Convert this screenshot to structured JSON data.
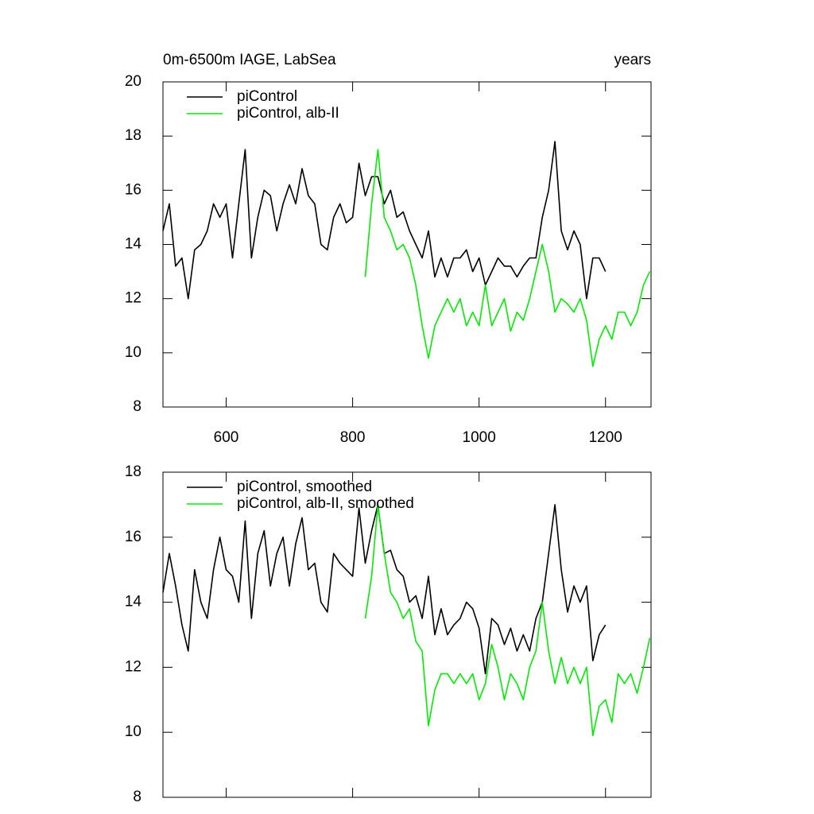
{
  "chart_data": [
    {
      "type": "line",
      "title": "0m-6500m IAGE, LabSea",
      "right_title": "years",
      "x": [
        500,
        510,
        520,
        530,
        540,
        550,
        560,
        570,
        580,
        590,
        600,
        610,
        620,
        630,
        640,
        650,
        660,
        670,
        680,
        690,
        700,
        710,
        720,
        730,
        740,
        750,
        760,
        770,
        780,
        790,
        800,
        810,
        820,
        830,
        840,
        850,
        860,
        870,
        880,
        890,
        900,
        910,
        920,
        930,
        940,
        950,
        960,
        970,
        980,
        990,
        1000,
        1010,
        1020,
        1030,
        1040,
        1050,
        1060,
        1070,
        1080,
        1090,
        1100,
        1110,
        1120,
        1130,
        1140,
        1150,
        1160,
        1170,
        1180,
        1190,
        1200,
        1210,
        1220,
        1230,
        1240,
        1250,
        1260,
        1270
      ],
      "series": [
        {
          "name": "piControl",
          "color": "#000000",
          "values": [
            14.5,
            15.5,
            13.2,
            13.5,
            12.0,
            13.8,
            14.0,
            14.5,
            15.5,
            15.0,
            15.5,
            13.5,
            15.5,
            17.5,
            13.5,
            15.0,
            16.0,
            15.8,
            14.5,
            15.5,
            16.2,
            15.5,
            16.8,
            15.8,
            15.5,
            14.0,
            13.8,
            15.0,
            15.5,
            14.8,
            15.0,
            17.0,
            15.8,
            16.5,
            16.5,
            15.5,
            16.0,
            15.0,
            15.2,
            14.5,
            14.0,
            13.5,
            14.5,
            12.8,
            13.5,
            12.8,
            13.5,
            13.5,
            13.8,
            13.0,
            13.5,
            12.5,
            13.0,
            13.5,
            13.2,
            13.2,
            12.8,
            13.2,
            13.5,
            13.5,
            15.0,
            16.0,
            17.8,
            14.5,
            13.8,
            14.5,
            14.0,
            12.0,
            13.5,
            13.5,
            13.0,
            null,
            null,
            null,
            null,
            null,
            null,
            null
          ]
        },
        {
          "name": "piControl, alb-II",
          "color": "#00ee00",
          "values": [
            null,
            null,
            null,
            null,
            null,
            null,
            null,
            null,
            null,
            null,
            null,
            null,
            null,
            null,
            null,
            null,
            null,
            null,
            null,
            null,
            null,
            null,
            null,
            null,
            null,
            null,
            null,
            null,
            null,
            null,
            null,
            null,
            12.8,
            15.5,
            17.5,
            15.0,
            14.5,
            13.8,
            14.0,
            13.5,
            12.5,
            11.0,
            9.8,
            11.0,
            11.5,
            12.0,
            11.5,
            12.0,
            11.0,
            11.5,
            11.0,
            12.5,
            11.0,
            11.5,
            12.0,
            10.8,
            11.5,
            11.2,
            12.0,
            13.0,
            14.0,
            13.0,
            11.5,
            12.0,
            11.8,
            11.5,
            12.0,
            11.2,
            9.5,
            10.5,
            11.0,
            10.5,
            11.5,
            11.5,
            11.0,
            11.5,
            12.5,
            13.0
          ]
        }
      ],
      "xlim": [
        500,
        1272
      ],
      "xticks": [
        600,
        800,
        1000,
        1200
      ],
      "ylim": [
        8,
        20
      ],
      "yticks": [
        8,
        10,
        12,
        14,
        16,
        18,
        20
      ]
    },
    {
      "type": "line",
      "x": [
        500,
        510,
        520,
        530,
        540,
        550,
        560,
        570,
        580,
        590,
        600,
        610,
        620,
        630,
        640,
        650,
        660,
        670,
        680,
        690,
        700,
        710,
        720,
        730,
        740,
        750,
        760,
        770,
        780,
        790,
        800,
        810,
        820,
        830,
        840,
        850,
        860,
        870,
        880,
        890,
        900,
        910,
        920,
        930,
        940,
        950,
        960,
        970,
        980,
        990,
        1000,
        1010,
        1020,
        1030,
        1040,
        1050,
        1060,
        1070,
        1080,
        1090,
        1100,
        1110,
        1120,
        1130,
        1140,
        1150,
        1160,
        1170,
        1180,
        1190,
        1200,
        1210,
        1220,
        1230,
        1240,
        1250,
        1260,
        1270
      ],
      "series": [
        {
          "name": "piControl, smoothed",
          "color": "#000000",
          "values": [
            14.3,
            15.5,
            14.5,
            13.3,
            12.5,
            15.0,
            14.0,
            13.5,
            15.0,
            16.0,
            15.0,
            14.8,
            14.0,
            16.5,
            13.5,
            15.5,
            16.2,
            14.5,
            15.5,
            16.0,
            14.5,
            15.8,
            16.6,
            15.0,
            15.2,
            14.0,
            13.7,
            15.5,
            15.2,
            15.0,
            14.8,
            16.9,
            15.2,
            16.2,
            17.0,
            15.5,
            15.6,
            15.0,
            14.8,
            14.0,
            14.2,
            13.5,
            14.8,
            13.0,
            13.8,
            13.0,
            13.3,
            13.5,
            14.0,
            13.8,
            13.2,
            11.8,
            13.5,
            13.3,
            12.7,
            13.2,
            12.5,
            13.0,
            12.5,
            13.5,
            14.0,
            15.5,
            17.0,
            15.0,
            13.7,
            14.5,
            14.0,
            14.5,
            12.2,
            13.0,
            13.3,
            null,
            null,
            null,
            null,
            null,
            null,
            null
          ]
        },
        {
          "name": "piControl, alb-II, smoothed",
          "color": "#00ee00",
          "values": [
            null,
            null,
            null,
            null,
            null,
            null,
            null,
            null,
            null,
            null,
            null,
            null,
            null,
            null,
            null,
            null,
            null,
            null,
            null,
            null,
            null,
            null,
            null,
            null,
            null,
            null,
            null,
            null,
            null,
            null,
            null,
            null,
            13.5,
            14.8,
            17.0,
            15.5,
            14.3,
            14.0,
            13.5,
            13.8,
            12.8,
            12.5,
            10.2,
            11.3,
            11.8,
            11.8,
            11.5,
            11.8,
            11.5,
            11.8,
            11.0,
            11.5,
            12.7,
            12.0,
            11.0,
            11.8,
            11.5,
            11.0,
            12.0,
            12.5,
            14.0,
            12.5,
            11.5,
            12.3,
            11.5,
            12.0,
            11.5,
            12.0,
            9.9,
            10.8,
            11.0,
            10.3,
            11.8,
            11.5,
            11.8,
            11.2,
            12.0,
            12.9
          ]
        }
      ],
      "xlim": [
        500,
        1272
      ],
      "ylim": [
        8,
        18
      ],
      "yticks": [
        8,
        10,
        12,
        14,
        16,
        18
      ]
    }
  ]
}
